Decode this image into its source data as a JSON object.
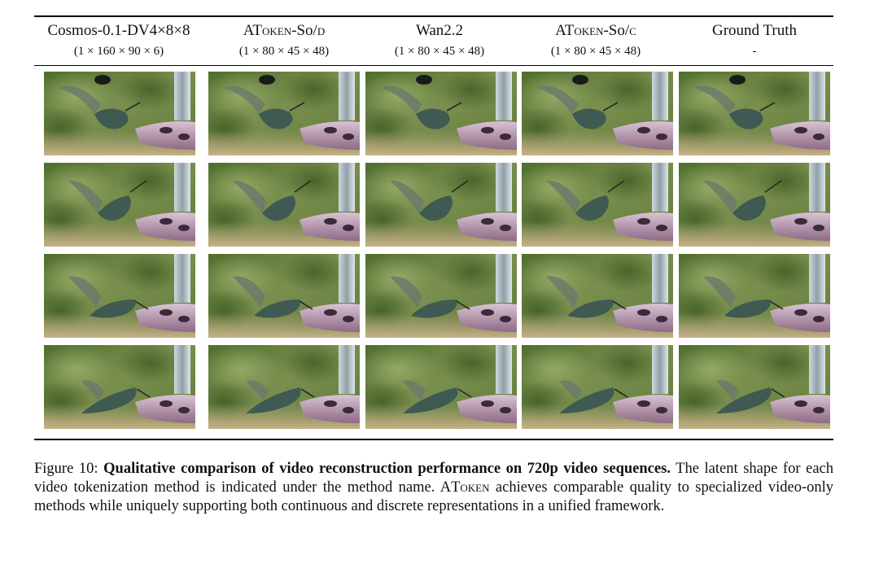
{
  "figure": {
    "columns": [
      {
        "name": "Cosmos-0.1-DV4×8×8",
        "shape": "(1 × 160 × 90 × 6)"
      },
      {
        "name_prefix": "AT",
        "name_sc": "oken",
        "name_suffix": "-So/",
        "name_variant": "d",
        "shape": "(1 × 80 × 45 × 48)"
      },
      {
        "name": "Wan2.2",
        "shape": "(1 × 80 × 45 × 48)"
      },
      {
        "name_prefix": "AT",
        "name_sc": "oken",
        "name_suffix": "-So/",
        "name_variant": "c",
        "shape": "(1 × 80 × 45 × 48)"
      },
      {
        "name": "Ground Truth",
        "shape": "-"
      }
    ],
    "rows": 4,
    "caption": {
      "label": "Figure 10:",
      "title": "Qualitative comparison of video reconstruction performance on 720p video sequences.",
      "body_1": "The latent shape for each video tokenization method is indicated under the method name. A",
      "body_sc": "Token",
      "body_2": " achieves comparable quality to specialized video-only methods while uniquely supporting both continuous and discrete representations in a unified framework."
    }
  }
}
